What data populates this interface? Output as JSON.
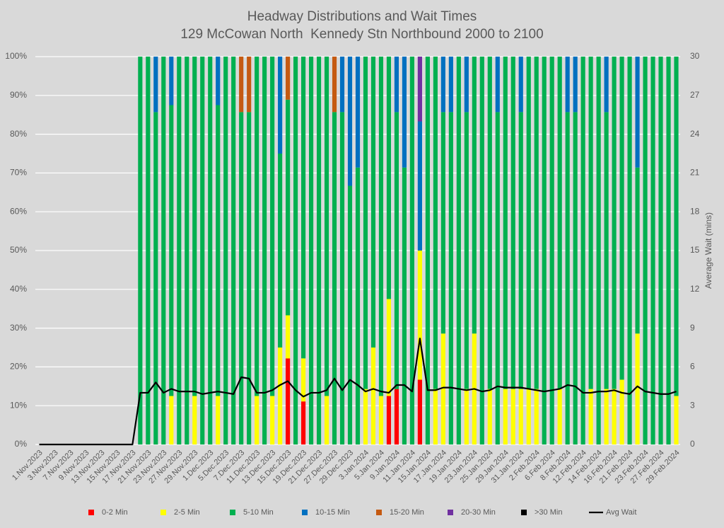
{
  "chart_data": {
    "type": "bar",
    "stacked": true,
    "title": "Headway Distributions and Wait Times",
    "subtitle": "129 McCowan North  Kennedy Stn Northbound 2000 to 2100",
    "y2label": "Average Wait (mins)",
    "categories": [
      "1.Nov.2023",
      null,
      "3.Nov.2023",
      null,
      "7.Nov.2023",
      null,
      "9.Nov.2023",
      null,
      "13.Nov.2023",
      null,
      "15.Nov.2023",
      null,
      "17.Nov.2023",
      null,
      "21.Nov.2023",
      null,
      "23.Nov.2023",
      null,
      "27.Nov.2023",
      null,
      "29.Nov.2023",
      null,
      "1.Dec.2023",
      null,
      "5.Dec.2023",
      null,
      "7.Dec.2023",
      null,
      "11.Dec.2023",
      null,
      "13.Dec.2023",
      null,
      "15.Dec.2023",
      null,
      "19.Dec.2023",
      null,
      "21.Dec.2023",
      null,
      "27.Dec.2023",
      null,
      "29.Dec.2023",
      null,
      "3.Jan.2024",
      null,
      "5.Jan.2024",
      null,
      "9.Jan.2024",
      null,
      "11.Jan.2024",
      null,
      "15.Jan.2024",
      null,
      "17.Jan.2024",
      null,
      "19.Jan.2024",
      null,
      "23.Jan.2024",
      null,
      "25.Jan.2024",
      null,
      "29.Jan.2024",
      null,
      "31.Jan.2024",
      null,
      "2.Feb.2024",
      null,
      "6.Feb.2024",
      null,
      "8.Feb.2024",
      null,
      "12.Feb.2024",
      null,
      "14.Feb.2024",
      null,
      "16.Feb.2024",
      null,
      "21.Feb.2024",
      null,
      "23.Feb.2024",
      null,
      "27.Feb.2024",
      null,
      "29.Feb.2024"
    ],
    "series": [
      {
        "name": "0-2 Min",
        "color": "#ff0000",
        "values": [
          0,
          0,
          0,
          0,
          0,
          0,
          0,
          0,
          0,
          0,
          0,
          0,
          0,
          0,
          0,
          0,
          0,
          0,
          0,
          0,
          0,
          0,
          0,
          0,
          0,
          0,
          0,
          0,
          0,
          0,
          0,
          0,
          22.2,
          0,
          11.1,
          0,
          0,
          0,
          0,
          0,
          0,
          0,
          0,
          0,
          0,
          12.5,
          14.3,
          0,
          0,
          16.7,
          0,
          0,
          0,
          0,
          0,
          0,
          0,
          0,
          0,
          0,
          0,
          0,
          0,
          0,
          0,
          0,
          0,
          0,
          0,
          0,
          0,
          0,
          0,
          0,
          0,
          0,
          0,
          0,
          0,
          0,
          0,
          0,
          0
        ]
      },
      {
        "name": "2-5 Min",
        "color": "#ffff00",
        "values": [
          0,
          0,
          0,
          0,
          0,
          0,
          0,
          0,
          0,
          0,
          0,
          0,
          0,
          0,
          0,
          0,
          0,
          12.5,
          0,
          0,
          12.5,
          0,
          0,
          12.5,
          0,
          0,
          0,
          0,
          12.5,
          0,
          12.5,
          25,
          11.1,
          0,
          11.1,
          0,
          0,
          12.5,
          0,
          0,
          0,
          0,
          14.3,
          25,
          12.5,
          25,
          0,
          0,
          0,
          33.3,
          0,
          14.3,
          28.6,
          0,
          0,
          14.3,
          28.6,
          0,
          14.3,
          0,
          14.3,
          14.3,
          14.3,
          14.3,
          14.3,
          0,
          0,
          14.3,
          0,
          0,
          0,
          14.3,
          0,
          14.3,
          14.3,
          16.7,
          0,
          28.6,
          0,
          0,
          0,
          0,
          12.5
        ]
      },
      {
        "name": "5-10 Min",
        "color": "#00b050",
        "values": [
          0,
          0,
          0,
          0,
          0,
          0,
          0,
          0,
          0,
          0,
          0,
          0,
          0,
          100,
          100,
          85.7,
          100,
          75,
          100,
          100,
          87.5,
          100,
          100,
          75,
          100,
          100,
          85.7,
          85.7,
          87.5,
          100,
          87.5,
          50,
          55.6,
          100,
          77.8,
          100,
          100,
          87.5,
          85.7,
          85.7,
          66.7,
          71.4,
          85.7,
          75,
          87.5,
          62.5,
          71.4,
          71.4,
          100,
          0,
          100,
          85.7,
          57.1,
          85.7,
          100,
          71.4,
          71.4,
          100,
          85.7,
          85.7,
          85.7,
          85.7,
          71.4,
          85.7,
          85.7,
          100,
          100,
          85.7,
          85.7,
          85.7,
          100,
          85.7,
          100,
          71.4,
          85.7,
          83.3,
          100,
          42.8,
          100,
          100,
          100,
          100,
          87.5
        ]
      },
      {
        "name": "10-15 Min",
        "color": "#0070c0",
        "values": [
          0,
          0,
          0,
          0,
          0,
          0,
          0,
          0,
          0,
          0,
          0,
          0,
          0,
          0,
          0,
          14.3,
          0,
          12.5,
          0,
          0,
          0,
          0,
          0,
          12.5,
          0,
          0,
          0,
          0,
          0,
          0,
          0,
          25,
          0,
          0,
          0,
          0,
          0,
          0,
          0,
          14.3,
          33.3,
          28.6,
          0,
          0,
          0,
          0,
          14.3,
          28.6,
          0,
          33.3,
          0,
          0,
          14.3,
          14.3,
          0,
          14.3,
          0,
          0,
          0,
          14.3,
          0,
          0,
          14.3,
          0,
          0,
          0,
          0,
          0,
          14.3,
          14.3,
          0,
          0,
          0,
          14.3,
          0,
          0,
          0,
          28.6,
          0,
          0,
          0,
          0,
          0
        ]
      },
      {
        "name": "15-20 Min",
        "color": "#c55a11",
        "values": [
          0,
          0,
          0,
          0,
          0,
          0,
          0,
          0,
          0,
          0,
          0,
          0,
          0,
          0,
          0,
          0,
          0,
          0,
          0,
          0,
          0,
          0,
          0,
          0,
          0,
          0,
          14.3,
          14.3,
          0,
          0,
          0,
          0,
          11.1,
          0,
          0,
          0,
          0,
          0,
          14.3,
          0,
          0,
          0,
          0,
          0,
          0,
          0,
          0,
          0,
          0,
          0,
          0,
          0,
          0,
          0,
          0,
          0,
          0,
          0,
          0,
          0,
          0,
          0,
          0,
          0,
          0,
          0,
          0,
          0,
          0,
          0,
          0,
          0,
          0,
          0,
          0,
          0,
          0,
          0,
          0,
          0,
          0,
          0,
          0
        ]
      },
      {
        "name": "20-30 Min",
        "color": "#7030a0",
        "values": [
          0,
          0,
          0,
          0,
          0,
          0,
          0,
          0,
          0,
          0,
          0,
          0,
          0,
          0,
          0,
          0,
          0,
          0,
          0,
          0,
          0,
          0,
          0,
          0,
          0,
          0,
          0,
          0,
          0,
          0,
          0,
          0,
          0,
          0,
          0,
          0,
          0,
          0,
          0,
          0,
          0,
          0,
          0,
          0,
          0,
          0,
          0,
          0,
          0,
          16.7,
          0,
          0,
          0,
          0,
          0,
          0,
          0,
          0,
          0,
          0,
          0,
          0,
          0,
          0,
          0,
          0,
          0,
          0,
          0,
          0,
          0,
          0,
          0,
          0,
          0,
          0,
          0,
          0,
          0,
          0,
          0,
          0,
          0
        ]
      },
      {
        "name": ">30 Min",
        "color": "#000000",
        "values": [
          0,
          0,
          0,
          0,
          0,
          0,
          0,
          0,
          0,
          0,
          0,
          0,
          0,
          0,
          0,
          0,
          0,
          0,
          0,
          0,
          0,
          0,
          0,
          0,
          0,
          0,
          0,
          0,
          0,
          0,
          0,
          0,
          0,
          0,
          0,
          0,
          0,
          0,
          0,
          0,
          0,
          0,
          0,
          0,
          0,
          0,
          0,
          0,
          0,
          0,
          0,
          0,
          0,
          0,
          0,
          0,
          0,
          0,
          0,
          0,
          0,
          0,
          0,
          0,
          0,
          0,
          0,
          0,
          0,
          0,
          0,
          0,
          0,
          0,
          0,
          0,
          0,
          0,
          0,
          0,
          0,
          0,
          0
        ]
      },
      {
        "name": "Avg Wait",
        "color": "#000000",
        "type": "line",
        "axis": "y2",
        "values": [
          0,
          0,
          0,
          0,
          0,
          0,
          0,
          0,
          0,
          0,
          0,
          0,
          0,
          4.0,
          4.0,
          4.8,
          4.0,
          4.3,
          4.1,
          4.1,
          4.1,
          3.9,
          4.0,
          4.1,
          4.0,
          3.9,
          5.2,
          5.1,
          4.0,
          4.0,
          4.2,
          4.6,
          4.9,
          4.2,
          3.7,
          4.0,
          4.0,
          4.2,
          5.1,
          4.2,
          5.0,
          4.6,
          4.1,
          4.3,
          4.1,
          4.0,
          4.6,
          4.6,
          4.1,
          8.2,
          4.2,
          4.2,
          4.4,
          4.4,
          4.3,
          4.2,
          4.3,
          4.1,
          4.2,
          4.5,
          4.4,
          4.4,
          4.4,
          4.3,
          4.2,
          4.1,
          4.2,
          4.3,
          4.6,
          4.5,
          4.0,
          4.0,
          4.1,
          4.1,
          4.2,
          4.0,
          3.9,
          4.5,
          4.1,
          4.0,
          3.9,
          3.9,
          4.1
        ]
      }
    ],
    "ylim": [
      0,
      100
    ],
    "yticks": [
      {
        "value": 0,
        "label": "0%"
      },
      {
        "value": 10,
        "label": "10%"
      },
      {
        "value": 20,
        "label": "20%"
      },
      {
        "value": 30,
        "label": "30%"
      },
      {
        "value": 40,
        "label": "40%"
      },
      {
        "value": 50,
        "label": "50%"
      },
      {
        "value": 60,
        "label": "60%"
      },
      {
        "value": 70,
        "label": "70%"
      },
      {
        "value": 80,
        "label": "80%"
      },
      {
        "value": 90,
        "label": "90%"
      },
      {
        "value": 100,
        "label": "100%"
      }
    ],
    "y2lim": [
      0,
      30
    ],
    "y2ticks": [
      0,
      3,
      6,
      9,
      12,
      15,
      18,
      21,
      24,
      27,
      30
    ],
    "grid": true,
    "legend": "bottom"
  }
}
